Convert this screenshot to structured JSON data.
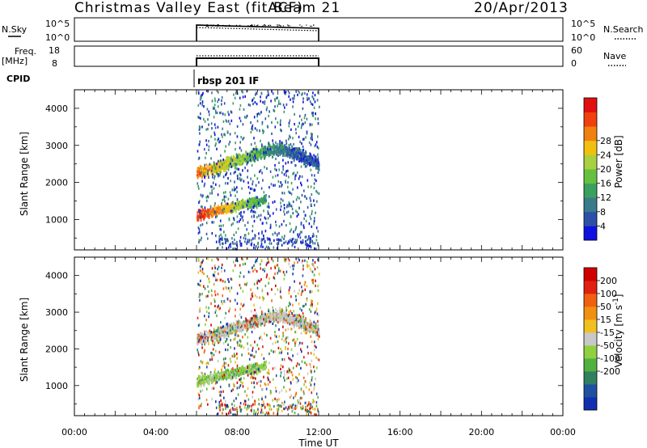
{
  "header": {
    "station": "Christmas Valley East (fitACF)",
    "beam": "Beam 21",
    "date": "20/Apr/2013"
  },
  "strips": {
    "nsky_label": "N.Sky",
    "nsky_ticks": [
      "10^5",
      "10^0"
    ],
    "nsearch_label": "N.Search",
    "freq_label_1": "Freq.",
    "freq_label_2": "[MHz]",
    "freq_ticks": [
      "18",
      "8"
    ],
    "nave_ticks": [
      "60",
      "0"
    ],
    "nave_label": "Nave",
    "cpid_label": "CPID",
    "cpid_value": "rbsp 201 IF"
  },
  "colors": {
    "power": [
      "#1010e0",
      "#2c50a8",
      "#3a7a8a",
      "#3aa060",
      "#66c040",
      "#a8d040",
      "#f0c010",
      "#f08010",
      "#f04010",
      "#e01010"
    ],
    "velocity": [
      "#1030b0",
      "#2050a0",
      "#308060",
      "#50b040",
      "#90d040",
      "#c8c8c8",
      "#f0c020",
      "#f09010",
      "#f06010",
      "#e02010",
      "#d00000"
    ]
  },
  "chart_data": [
    {
      "type": "line",
      "title": "N.Sky / N.Search",
      "x": [
        "06:00",
        "12:00"
      ],
      "series": [
        {
          "name": "N.Sky",
          "values": [
            10000,
            8000
          ]
        },
        {
          "name": "N.Search",
          "values": [
            4000,
            3000
          ]
        }
      ]
    },
    {
      "type": "line",
      "title": "Freq. [MHz] / Nave",
      "series": [
        {
          "name": "Freq. [MHz]",
          "values": [
            10.5,
            10.5
          ]
        },
        {
          "name": "Nave",
          "values": [
            30,
            30
          ]
        }
      ]
    },
    {
      "type": "heatmap",
      "xlabel": "Time UT",
      "ylabel": "Slant Range [km]",
      "x_ticks": [
        "00:00",
        "04:00",
        "08:00",
        "12:00",
        "16:00",
        "20:00",
        "00:00"
      ],
      "y_ticks": [
        "1000",
        "2000",
        "3000",
        "4000"
      ],
      "colorbar_label": "Power [dB]",
      "colorbar_ticks": [
        "4",
        "8",
        "12",
        "16",
        "20",
        "24",
        "28"
      ],
      "xlim_hours": [
        0,
        24
      ],
      "ylim_km": [
        180,
        4500
      ],
      "data_span_hours": [
        6.0,
        12.0
      ]
    },
    {
      "type": "heatmap",
      "xlabel": "Time UT",
      "ylabel": "Slant Range [km]",
      "x_ticks": [
        "00:00",
        "04:00",
        "08:00",
        "12:00",
        "16:00",
        "20:00",
        "00:00"
      ],
      "y_ticks": [
        "1000",
        "2000",
        "3000",
        "4000"
      ],
      "colorbar_label": "Velocity [m s^-1]",
      "colorbar_ticks": [
        "200",
        "100",
        "50",
        "15",
        "-15",
        "-50",
        "-100",
        "-200"
      ],
      "xlim_hours": [
        0,
        24
      ],
      "ylim_km": [
        180,
        4500
      ],
      "data_span_hours": [
        6.0,
        12.0
      ]
    }
  ]
}
